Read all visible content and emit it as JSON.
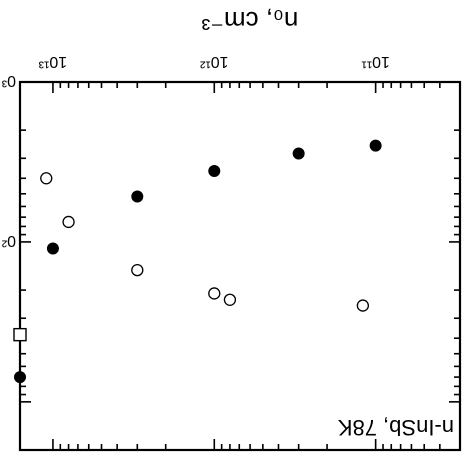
{
  "chart_data": {
    "type": "scatter",
    "render_rotation_deg": 180,
    "x_scale": "log",
    "y_scale": "log",
    "xlim": [
      30000000000.0,
      16000000000000.0
    ],
    "ylim": [
      1000,
      200000
    ],
    "x_ticks": [
      100000000000.0,
      1000000000000.0,
      10000000000000.0
    ],
    "x_tick_labels": [
      "10¹¹",
      "10¹²",
      "10¹³"
    ],
    "y_tick_labels_partial": [
      "0³",
      "0²"
    ],
    "xlabel": "n₀, cm⁻³",
    "annotation": "n-InSb, 78K",
    "series": [
      {
        "marker": "filled-circle",
        "x": [
          100000000000.0,
          300000000000.0,
          1000000000000.0,
          3000000000000.0,
          10000000000000.0,
          16000000000000.0
        ],
        "y": [
          2500,
          2800,
          3600,
          5200,
          11000,
          70000
        ]
      },
      {
        "marker": "open-circle",
        "x": [
          120000000000.0,
          800000000000.0,
          1000000000000.0,
          3000000000000.0,
          8000000000000.0,
          11000000000000.0
        ],
        "y": [
          25000,
          23000,
          21000,
          15000,
          7500,
          4000
        ]
      },
      {
        "marker": "open-square",
        "x": [
          16000000000000.0
        ],
        "y": [
          38000
        ]
      }
    ]
  }
}
